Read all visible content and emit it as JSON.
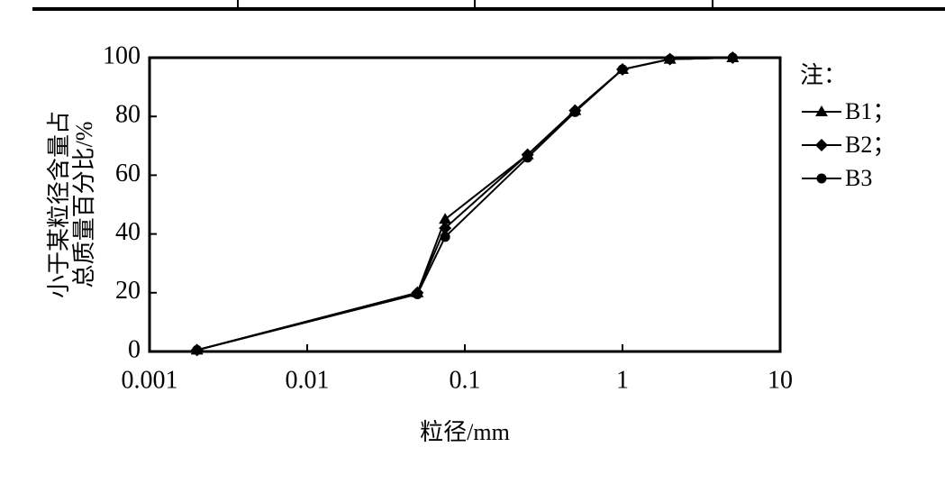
{
  "chart_data": {
    "type": "line",
    "ylabel": [
      "小于某粒径含量占",
      "总质量百分比/%"
    ],
    "xlabel": "粒径/mm",
    "legend_title": "注：",
    "x": [
      0.002,
      0.05,
      0.075,
      0.25,
      0.5,
      1,
      2,
      5
    ],
    "series": [
      {
        "name": "B1；",
        "color": "#000000",
        "marker": "triangle",
        "values": [
          0.5,
          20,
          45,
          67,
          82,
          96,
          99.5,
          100
        ]
      },
      {
        "name": "B2；",
        "color": "#000000",
        "marker": "diamond",
        "values": [
          0.5,
          20,
          42,
          67,
          82,
          96,
          99.5,
          100
        ]
      },
      {
        "name": "B3",
        "color": "#000000",
        "marker": "circle",
        "values": [
          0.5,
          19.5,
          39,
          66,
          81.5,
          96,
          99.5,
          100
        ]
      }
    ],
    "xscale": "log",
    "xlim": [
      0.001,
      10
    ],
    "xticks": [
      0.001,
      0.01,
      0.1,
      1,
      10
    ],
    "ylim": [
      0,
      100
    ],
    "yticks": [
      0,
      20,
      40,
      60,
      80,
      100
    ],
    "legend": "right"
  }
}
